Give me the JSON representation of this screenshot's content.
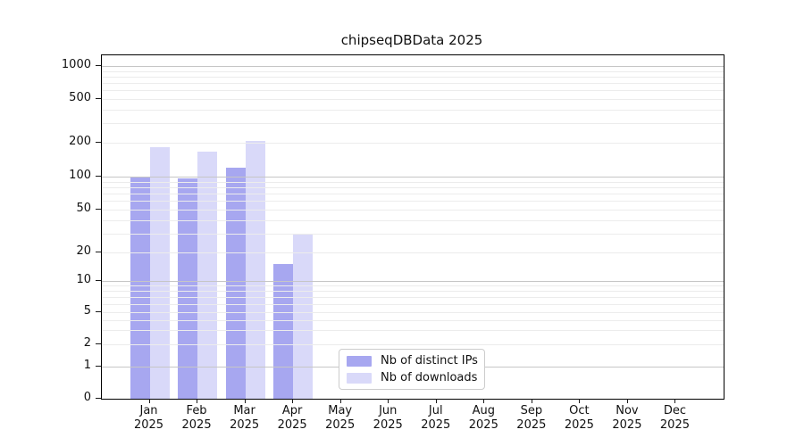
{
  "chart_data": {
    "type": "bar",
    "title": "chipseqDBData 2025",
    "categories": [
      "Jan",
      "Feb",
      "Mar",
      "Apr",
      "May",
      "Jun",
      "Jul",
      "Aug",
      "Sep",
      "Oct",
      "Nov",
      "Dec"
    ],
    "category_year": "2025",
    "series": [
      {
        "name": "Nb of distinct IPs",
        "color": "#a7a7f0",
        "values": [
          100,
          96,
          120,
          15,
          0,
          0,
          0,
          0,
          0,
          0,
          0,
          0
        ]
      },
      {
        "name": "Nb of downloads",
        "color": "#d9d9f9",
        "values": [
          183,
          166,
          208,
          30,
          0,
          0,
          0,
          0,
          0,
          0,
          0,
          0
        ]
      }
    ],
    "y_ticks": [
      0,
      1,
      2,
      5,
      10,
      20,
      50,
      100,
      200,
      500,
      1000
    ],
    "y_scale": "symlog",
    "ylim": [
      0,
      1000
    ],
    "grid": "horizontal",
    "grid_major_at": [
      1,
      10,
      100,
      1000
    ],
    "legend_position": "inside-bottom-center",
    "colors": {
      "major_grid": "#c6c6c6",
      "minor_grid": "#ececec",
      "axis": "#000000",
      "legend_border": "#cccccc"
    }
  }
}
